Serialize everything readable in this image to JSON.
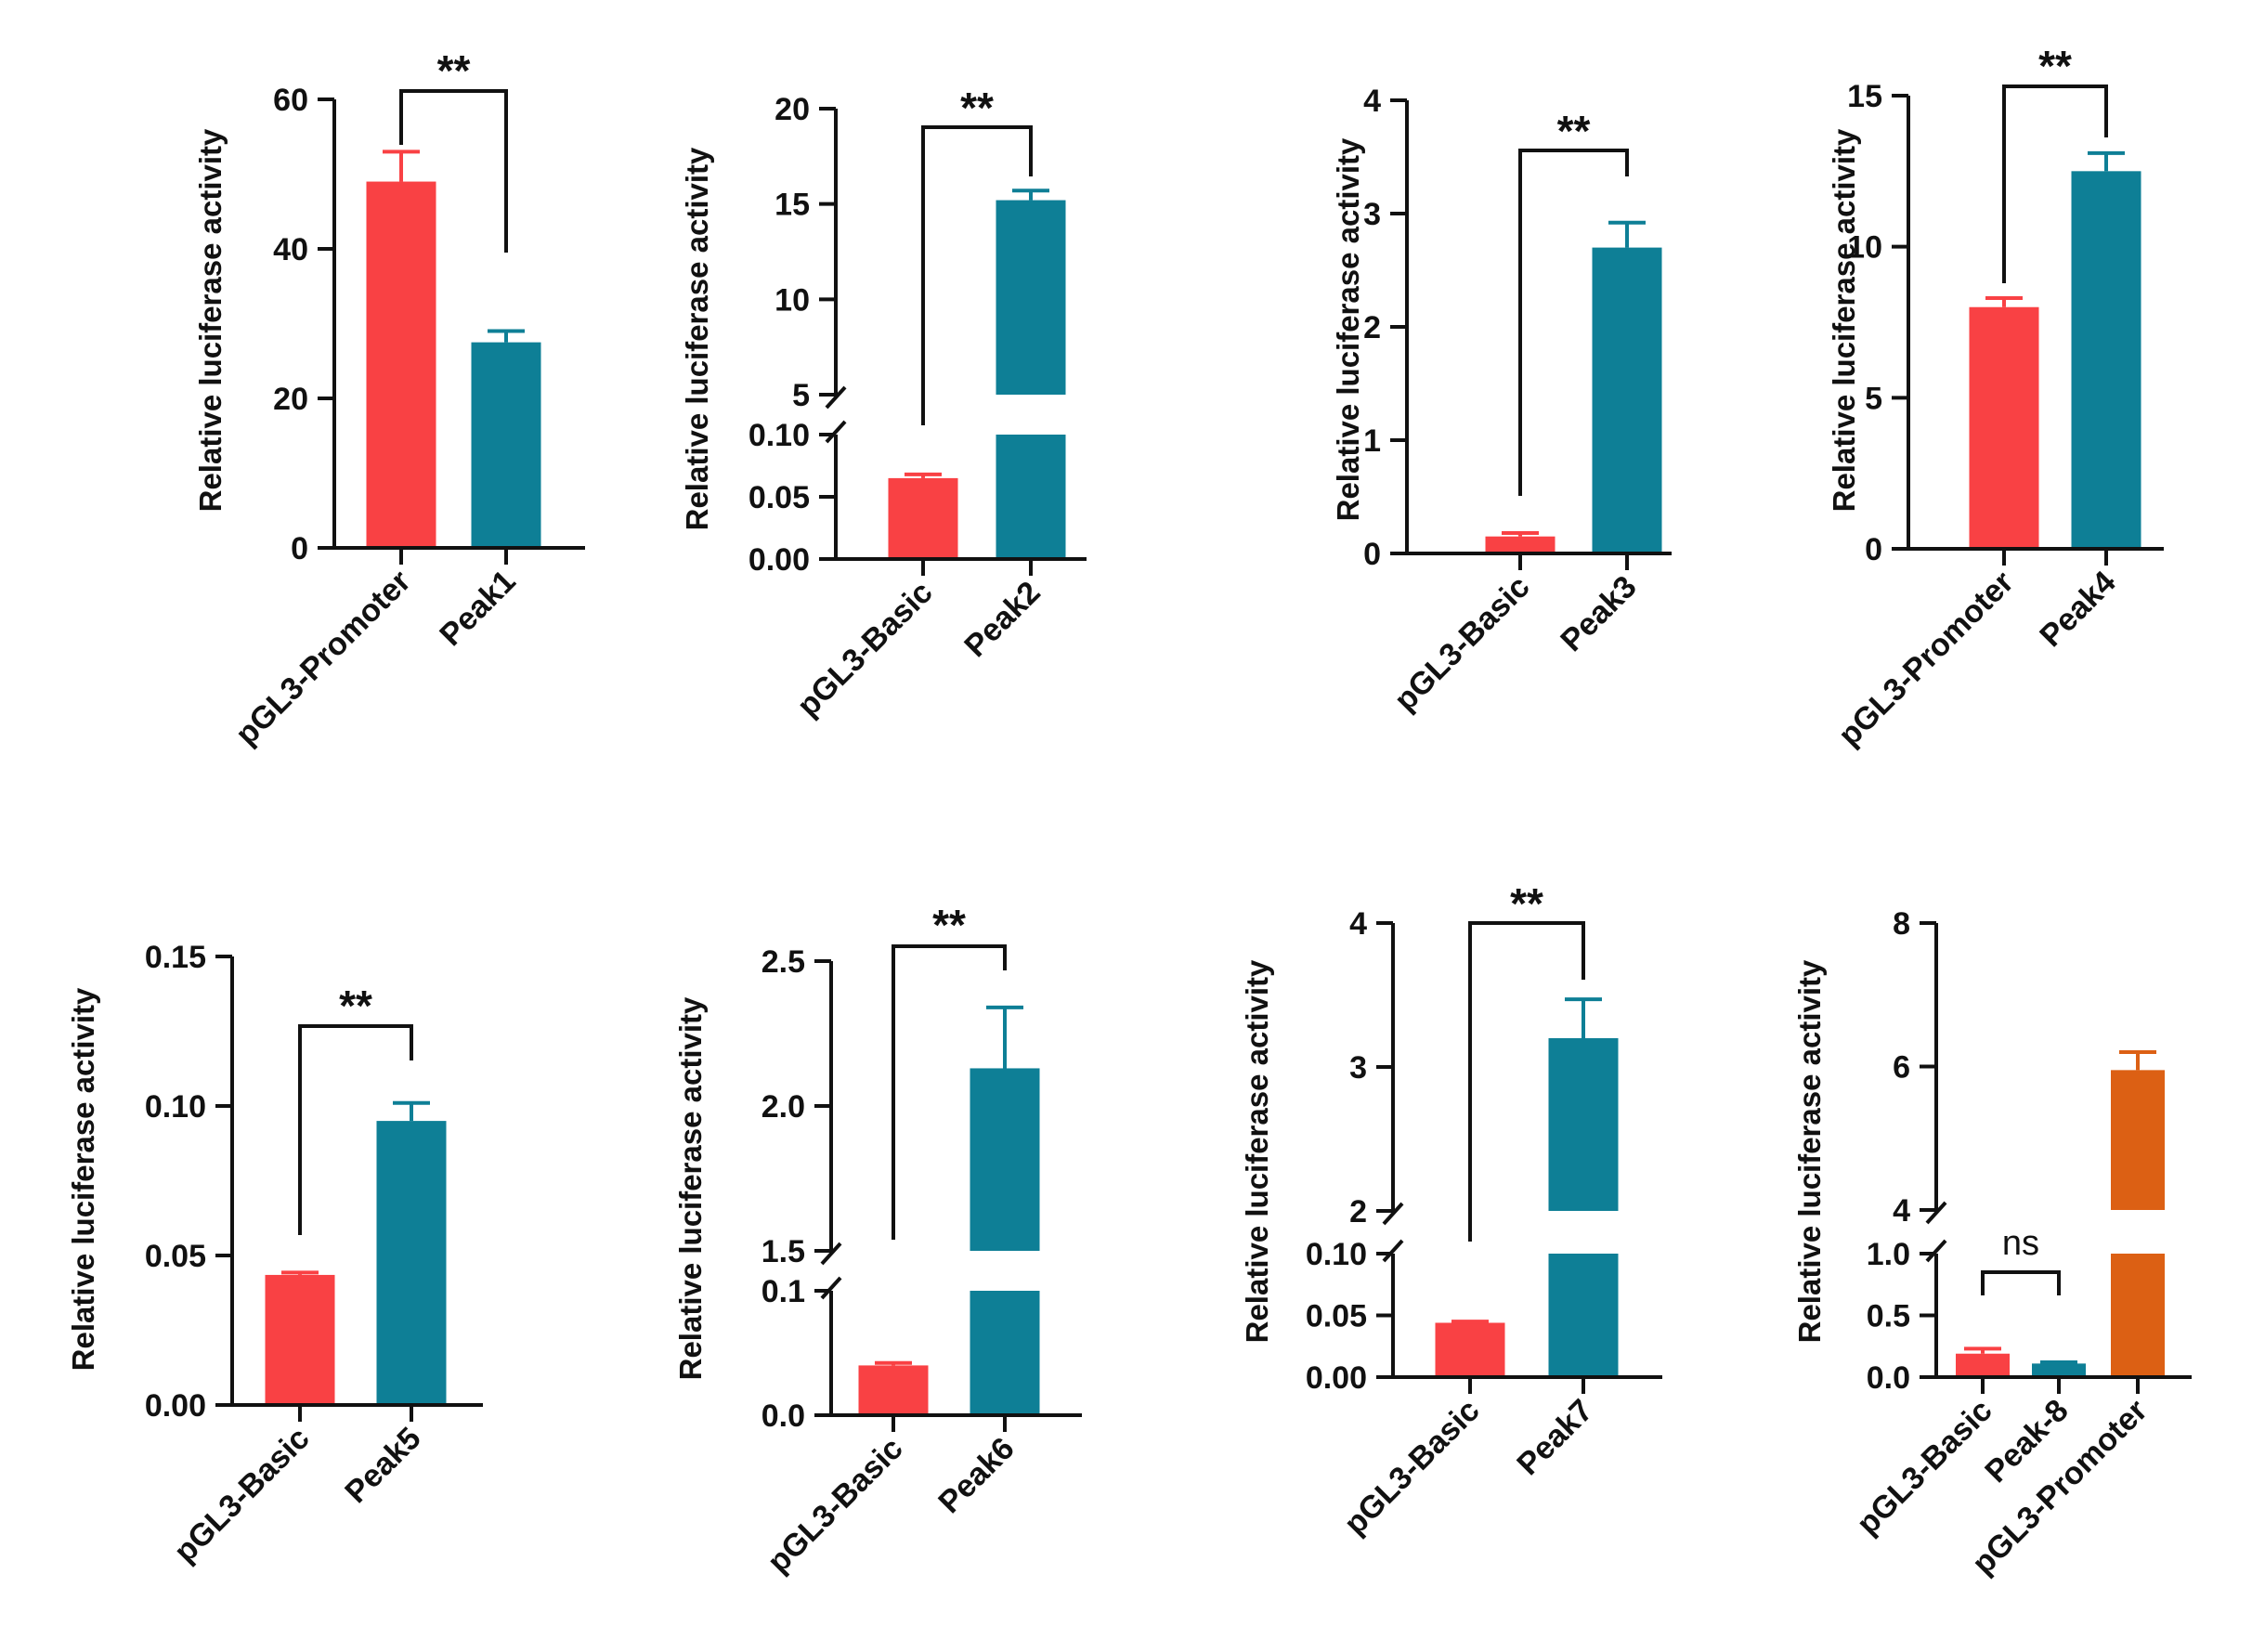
{
  "figure": {
    "ylabel": "Relative luciferase activity",
    "colors": {
      "basic": "#f94144",
      "peak": "#0e7f96",
      "promoter": "#dc6014",
      "axis": "#111111"
    }
  },
  "chart_data": [
    {
      "id": "peak1",
      "type": "bar",
      "ylabel": "Relative luciferase activity",
      "categories": [
        "pGL3-Promoter",
        "Peak1"
      ],
      "values": [
        49,
        27.5
      ],
      "errors": [
        4,
        1.5
      ],
      "ylim": [
        0,
        60
      ],
      "yticks": [
        "0",
        "20",
        "40",
        "60"
      ],
      "significance": [
        {
          "between": [
            0,
            1
          ],
          "label": "**"
        }
      ]
    },
    {
      "id": "peak2",
      "type": "bar",
      "ylabel": "Relative luciferase activity",
      "categories": [
        "pGL3-Basic",
        "Peak2"
      ],
      "values": [
        0.065,
        15.2
      ],
      "errors": [
        0.003,
        0.5
      ],
      "axis_break": {
        "lower": [
          0,
          0.1
        ],
        "upper": [
          5,
          20
        ]
      },
      "yticks_lower": [
        "0.00",
        "0.05",
        "0.10"
      ],
      "yticks_upper": [
        "5",
        "10",
        "15",
        "20"
      ],
      "significance": [
        {
          "between": [
            0,
            1
          ],
          "label": "**"
        }
      ]
    },
    {
      "id": "peak3",
      "type": "bar",
      "ylabel": "Relative luciferase activity",
      "categories": [
        "pGL3-Basic",
        "Peak3"
      ],
      "values": [
        0.15,
        2.7
      ],
      "errors": [
        0.03,
        0.22
      ],
      "ylim": [
        0,
        4
      ],
      "yticks": [
        "0",
        "1",
        "2",
        "3",
        "4"
      ],
      "significance": [
        {
          "between": [
            0,
            1
          ],
          "label": "**"
        }
      ]
    },
    {
      "id": "peak4",
      "type": "bar",
      "ylabel": "Relative luciferase activity",
      "categories": [
        "pGL3-Promoter",
        "Peak4"
      ],
      "values": [
        8,
        12.5
      ],
      "errors": [
        0.3,
        0.6
      ],
      "ylim": [
        0,
        15
      ],
      "yticks": [
        "0",
        "5",
        "10",
        "15"
      ],
      "significance": [
        {
          "between": [
            0,
            1
          ],
          "label": "**"
        }
      ]
    },
    {
      "id": "peak5",
      "type": "bar",
      "ylabel": "Relative luciferase activity",
      "categories": [
        "pGL3-Basic",
        "Peak5"
      ],
      "values": [
        0.0435,
        0.095
      ],
      "errors": [
        0.0008,
        0.006
      ],
      "ylim": [
        0,
        0.15
      ],
      "yticks": [
        "0.00",
        "0.05",
        "0.10",
        "0.15"
      ],
      "significance": [
        {
          "between": [
            0,
            1
          ],
          "label": "**"
        }
      ]
    },
    {
      "id": "peak6",
      "type": "bar",
      "ylabel": "Relative luciferase activity",
      "categories": [
        "pGL3-Basic",
        "Peak6"
      ],
      "values": [
        0.04,
        2.13
      ],
      "errors": [
        0.002,
        0.21
      ],
      "axis_break": {
        "lower": [
          0,
          0.1
        ],
        "upper": [
          1.5,
          2.5
        ]
      },
      "yticks_lower": [
        "0.0",
        "0.1"
      ],
      "yticks_upper": [
        "1.5",
        "2.0",
        "2.5"
      ],
      "significance": [
        {
          "between": [
            0,
            1
          ],
          "label": "**"
        }
      ]
    },
    {
      "id": "peak7",
      "type": "bar",
      "ylabel": "Relative luciferase activity",
      "categories": [
        "pGL3-Basic",
        "Peak7"
      ],
      "values": [
        0.044,
        3.2
      ],
      "errors": [
        0.001,
        0.27
      ],
      "axis_break": {
        "lower": [
          0,
          0.1
        ],
        "upper": [
          2,
          4
        ]
      },
      "yticks_lower": [
        "0.00",
        "0.05",
        "0.10"
      ],
      "yticks_upper": [
        "2",
        "3",
        "4"
      ],
      "significance": [
        {
          "between": [
            0,
            1
          ],
          "label": "**"
        }
      ]
    },
    {
      "id": "peak8",
      "type": "bar",
      "ylabel": "Relative luciferase activity",
      "categories": [
        "pGL3-Basic",
        "Peak-8",
        "pGL3-Promoter"
      ],
      "values": [
        0.19,
        0.11,
        5.95
      ],
      "errors": [
        0.04,
        0.01,
        0.25
      ],
      "axis_break": {
        "lower": [
          0,
          1.0
        ],
        "upper": [
          4,
          8
        ]
      },
      "yticks_lower": [
        "0.0",
        "0.5",
        "1.0"
      ],
      "yticks_upper": [
        "4",
        "6",
        "8"
      ],
      "significance": [
        {
          "between": [
            0,
            1
          ],
          "label": "ns"
        }
      ]
    }
  ]
}
